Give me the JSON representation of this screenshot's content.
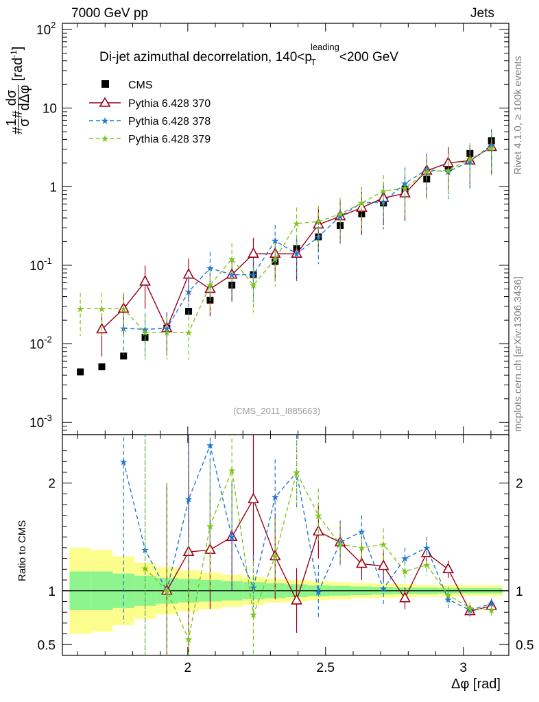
{
  "header": {
    "left": "7000 GeV pp",
    "right": "Jets"
  },
  "side_labels": {
    "rivet": "Rivet 4.1.0, ≥ 100k events",
    "mcplots": "mcplots.cern.ch [arXiv:1306.3436]"
  },
  "colors": {
    "data": "#000000",
    "p370": "#990018",
    "p378": "#1f77d4",
    "p379": "#80c31a",
    "band_inner": "#8ef58e",
    "band_outer": "#fdfd8e",
    "side_text": "#7f7f7f"
  },
  "chart_data": {
    "type": "line",
    "title_main": "Di-jet azimuthal decorrelation, 140<p",
    "title_sup": "leading",
    "title_sub": "T",
    "title_end": "<200 GeV",
    "ylabel": "#1/σ #dσ/dΔφ [rad⁻¹]",
    "ylabel_parts": {
      "hash": "#",
      "frac1_num": "1",
      "frac1_den": "σ",
      "hash2": "#",
      "frac2_num": "dσ",
      "frac2_den": "dΔφ",
      "unit": "[rad",
      "unit_sup": "-1",
      "unit_end": "]"
    },
    "xlabel": "Δφ [rad]",
    "ratio_ylabel": "Ratio to CMS",
    "watermark": "(CMS_2011_I885663)",
    "xlim": [
      1.545,
      3.165
    ],
    "ylim_main": [
      0.0007,
      120
    ],
    "ylim_ratio": [
      0.4,
      2.45
    ],
    "main_y_ticks": [
      {
        "value": 0.001,
        "base": "10",
        "exp": "-3"
      },
      {
        "value": 0.01,
        "base": "10",
        "exp": "-2"
      },
      {
        "value": 0.1,
        "base": "10",
        "exp": "-1"
      },
      {
        "value": 1,
        "base": "1",
        "exp": ""
      },
      {
        "value": 10,
        "base": "10",
        "exp": ""
      },
      {
        "value": 100,
        "base": "10",
        "exp": "2"
      }
    ],
    "x_ticks": [
      {
        "value": 2,
        "label": "2"
      },
      {
        "value": 2.5,
        "label": "2.5"
      },
      {
        "value": 3,
        "label": "3"
      }
    ],
    "ratio_ticks": [
      {
        "value": 0.5,
        "label": "0.5"
      },
      {
        "value": 1,
        "label": "1"
      },
      {
        "value": 2,
        "label": "2"
      }
    ],
    "x": [
      1.61,
      1.688,
      1.767,
      1.845,
      1.924,
      2.003,
      2.081,
      2.16,
      2.238,
      2.317,
      2.395,
      2.474,
      2.553,
      2.631,
      2.71,
      2.788,
      2.867,
      2.945,
      3.024,
      3.102
    ],
    "bin_edges": [
      1.571,
      1.649,
      1.728,
      1.806,
      1.885,
      1.964,
      2.042,
      2.121,
      2.199,
      2.278,
      2.356,
      2.435,
      2.513,
      2.592,
      2.67,
      2.749,
      2.827,
      2.906,
      2.985,
      3.063,
      3.142
    ],
    "band_inner_half": [
      0.18,
      0.18,
      0.16,
      0.14,
      0.12,
      0.11,
      0.1,
      0.09,
      0.08,
      0.07,
      0.06,
      0.05,
      0.045,
      0.04,
      0.035,
      0.03,
      0.03,
      0.025,
      0.025,
      0.025
    ],
    "band_outer_half": [
      0.4,
      0.38,
      0.32,
      0.26,
      0.22,
      0.19,
      0.17,
      0.15,
      0.13,
      0.11,
      0.1,
      0.09,
      0.08,
      0.07,
      0.065,
      0.06,
      0.055,
      0.055,
      0.05,
      0.05
    ],
    "series": [
      {
        "name": "CMS",
        "key": "data",
        "marker": "square",
        "values": [
          0.0044,
          0.0051,
          0.007,
          0.0121,
          0.0158,
          0.026,
          0.036,
          0.056,
          0.076,
          0.112,
          0.163,
          0.23,
          0.32,
          0.45,
          0.62,
          0.92,
          1.25,
          1.75,
          2.65,
          3.85
        ]
      },
      {
        "name": "Pythia 6.428 370",
        "key": "p370",
        "marker": "triangle",
        "dash": "",
        "values": [
          null,
          0.0153,
          0.028,
          0.062,
          0.0158,
          0.076,
          0.05,
          0.076,
          0.14,
          0.14,
          0.14,
          0.33,
          0.42,
          0.54,
          0.72,
          0.82,
          1.6,
          2.0,
          2.15,
          3.2
        ],
        "ratio": [
          null,
          null,
          null,
          null,
          1.0,
          1.36,
          1.38,
          1.5,
          1.85,
          1.32,
          0.91,
          1.55,
          1.45,
          1.25,
          1.23,
          0.93,
          1.35,
          1.2,
          0.81,
          0.86
        ],
        "ratio_err": [
          null,
          null,
          null,
          null,
          1.0,
          1.3,
          0.55,
          0.5,
          0.6,
          0.4,
          0.3,
          0.25,
          0.2,
          0.15,
          0.15,
          0.1,
          0.1,
          0.08,
          0.05,
          0.05
        ]
      },
      {
        "name": "Pythia 6.428 378",
        "key": "p378",
        "marker": "star",
        "dash": "6,4",
        "values": [
          null,
          null,
          0.0158,
          0.0153,
          0.0158,
          0.046,
          0.092,
          0.076,
          0.076,
          0.205,
          0.14,
          0.23,
          0.42,
          0.62,
          0.64,
          1.1,
          1.65,
          1.55,
          2.1,
          3.4
        ],
        "ratio": [
          null,
          null,
          2.2,
          1.38,
          1.0,
          1.85,
          2.35,
          1.5,
          1.03,
          1.87,
          2.1,
          0.99,
          1.45,
          1.55,
          1.02,
          1.3,
          1.4,
          0.92,
          0.82,
          0.88
        ],
        "ratio_err": [
          null,
          null,
          1.5,
          1.4,
          1.0,
          0.8,
          0.9,
          0.5,
          0.3,
          0.35,
          0.35,
          0.25,
          0.2,
          0.15,
          0.15,
          0.1,
          0.1,
          0.08,
          0.05,
          0.05
        ]
      },
      {
        "name": "Pythia 6.428 379",
        "key": "p379",
        "marker": "star",
        "dash": "6,4",
        "values": [
          0.028,
          0.028,
          0.028,
          0.014,
          0.014,
          0.014,
          0.056,
          0.12,
          0.056,
          0.12,
          0.34,
          0.36,
          0.45,
          0.62,
          0.88,
          0.96,
          1.55,
          1.62,
          2.25,
          3.1
        ],
        "ratio": [
          null,
          null,
          null,
          1.21,
          1.0,
          0.55,
          1.6,
          2.12,
          0.78,
          1.32,
          2.1,
          1.7,
          1.43,
          1.4,
          1.43,
          1.18,
          1.24,
          0.96,
          0.84,
          0.82
        ],
        "ratio_err": [
          null,
          null,
          null,
          1.2,
          1.0,
          0.9,
          0.6,
          0.55,
          0.5,
          0.35,
          0.3,
          0.25,
          0.2,
          0.15,
          0.15,
          0.1,
          0.1,
          0.08,
          0.05,
          0.05
        ]
      }
    ]
  }
}
